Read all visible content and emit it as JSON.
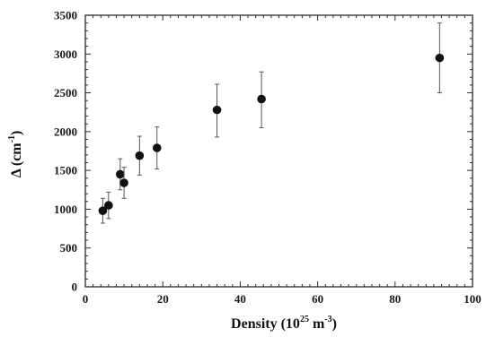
{
  "chart_data": {
    "type": "scatter",
    "title": "",
    "xlabel": "Density (10^25 m^-3)",
    "ylabel": "Δ (cm^-1)",
    "xlabel_parts": {
      "main": "Density (10",
      "sup1": "25",
      "mid": " m",
      "sup2": "-3",
      "end": ")"
    },
    "ylabel_parts": {
      "main": "Δ (cm",
      "sup": "-1",
      "end": ")"
    },
    "xlim": [
      0,
      100
    ],
    "ylim": [
      0,
      3500
    ],
    "xticks": [
      0,
      20,
      40,
      60,
      80,
      100
    ],
    "yticks": [
      0,
      500,
      1000,
      1500,
      2000,
      2500,
      3000,
      3500
    ],
    "grid": false,
    "legend": "none",
    "marker_color": "#111111",
    "points": [
      {
        "x": 4.5,
        "y": 980,
        "err_low": 160,
        "err_high": 160
      },
      {
        "x": 6.0,
        "y": 1050,
        "err_low": 170,
        "err_high": 170
      },
      {
        "x": 9.0,
        "y": 1450,
        "err_low": 200,
        "err_high": 200
      },
      {
        "x": 10.0,
        "y": 1340,
        "err_low": 200,
        "err_high": 200
      },
      {
        "x": 14.0,
        "y": 1690,
        "err_low": 250,
        "err_high": 250
      },
      {
        "x": 18.5,
        "y": 1790,
        "err_low": 270,
        "err_high": 270
      },
      {
        "x": 34.0,
        "y": 2280,
        "err_low": 350,
        "err_high": 330
      },
      {
        "x": 45.5,
        "y": 2420,
        "err_low": 370,
        "err_high": 350
      },
      {
        "x": 91.5,
        "y": 2950,
        "err_low": 450,
        "err_high": 450
      }
    ]
  }
}
